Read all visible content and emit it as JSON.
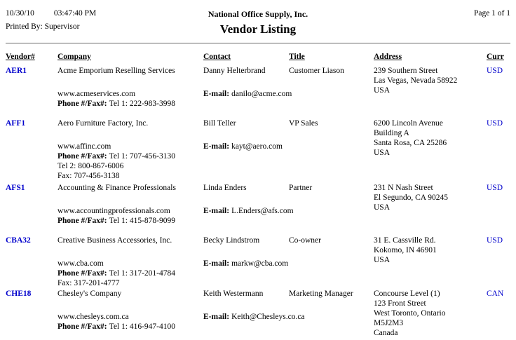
{
  "report": {
    "date": "10/30/10",
    "time": "03:47:40 PM",
    "organization": "National Office Supply, Inc.",
    "page_info": "Page 1 of 1",
    "printed_by": "Printed By: Supervisor",
    "title": "Vendor Listing"
  },
  "columns": {
    "vendor": "Vendor#",
    "company": "Company",
    "contact": "Contact",
    "title": "Title",
    "address": "Address",
    "curr": "Curr"
  },
  "labels": {
    "email": "E-mail:",
    "phone_fax": "Phone #/Fax#:"
  },
  "colors": {
    "link_blue": "#0000CC",
    "text": "#000000",
    "background": "#FFFFFF"
  },
  "vendors": [
    {
      "id": "AER1",
      "company": "Acme Emporium Reselling Services",
      "website": "www.acmeservices.com",
      "contact": "Danny Helterbrand",
      "email": "danilo@acme.com",
      "title": "Customer Liason",
      "phone_lines": [
        "Tel 1: 222-983-3998"
      ],
      "address_lines": [
        "239 Southern Street",
        "Las Vegas, Nevada 58922",
        "USA"
      ],
      "curr": "USD"
    },
    {
      "id": "AFF1",
      "company": "Aero Furniture Factory, Inc.",
      "website": "www.affinc.com",
      "contact": "Bill Teller",
      "email": "kayt@aero.com",
      "title": "VP Sales",
      "phone_lines": [
        "Tel 1: 707-456-3130",
        "Tel 2: 800-867-6006",
        "Fax: 707-456-3138"
      ],
      "address_lines": [
        "6200 Lincoln Avenue",
        "Building A",
        "Santa Rosa, CA 25286",
        "USA"
      ],
      "curr": "USD"
    },
    {
      "id": "AFS1",
      "company": "Accounting & Finance Professionals",
      "website": "www.accountingprofessionals.com",
      "contact": "Linda Enders",
      "email": "L.Enders@afs.com",
      "title": "Partner",
      "phone_lines": [
        "Tel 1: 415-878-9099"
      ],
      "address_lines": [
        "231 N Nash Street",
        "El Segundo, CA 90245",
        "USA"
      ],
      "curr": "USD"
    },
    {
      "id": "CBA32",
      "company": "Creative Business Accessories, Inc.",
      "website": "www.cba.com",
      "contact": "Becky Lindstrom",
      "email": "markw@cba.com",
      "title": "Co-owner",
      "phone_lines": [
        "Tel 1: 317-201-4784",
        "Fax: 317-201-4777"
      ],
      "address_lines": [
        "31 E. Cassville Rd.",
        "Kokomo, IN 46901",
        "USA"
      ],
      "curr": "USD"
    },
    {
      "id": "CHE18",
      "company": "Chesley's Company",
      "website": "www.chesleys.com.ca",
      "contact": "Keith Westermann",
      "email": "Keith@Chesleys.co.ca",
      "title": "Marketing Manager",
      "phone_lines": [
        "Tel 1: 416-947-4100"
      ],
      "address_lines": [
        "Concourse Level (1)",
        "123 Front Street",
        "West Toronto, Ontario",
        "M5J2M3",
        "Canada"
      ],
      "curr": "CAN"
    }
  ]
}
